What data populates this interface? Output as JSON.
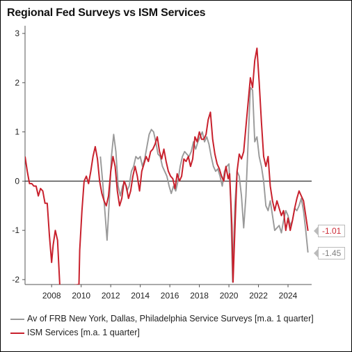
{
  "title": "Regional Fed Surveys vs ISM Services",
  "colors": {
    "frb": "#999999",
    "ism": "#c8202c",
    "zero_line": "#333333"
  },
  "chart_data": {
    "type": "line",
    "title": "Regional Fed Surveys vs ISM Services",
    "xlabel": "",
    "ylabel": "",
    "xlim": [
      2006.2,
      2025.6
    ],
    "ylim": [
      -2.1,
      3.1
    ],
    "x_ticks": [
      "2008",
      "2010",
      "2012",
      "2014",
      "2016",
      "2018",
      "2020",
      "2022",
      "2024"
    ],
    "y_ticks": [
      "-2",
      "-1",
      "0",
      "1",
      "2",
      "3"
    ],
    "grid": false,
    "legend_position": "bottom",
    "series": [
      {
        "name": "Av of FRB New York, Dallas, Philadelphia Service Surveys [m.a. 1 quarter]",
        "color": "#999999",
        "start_year": 2011.3,
        "points": [
          [
            2011.3,
            0.5
          ],
          [
            2011.45,
            0.0
          ],
          [
            2011.6,
            -0.6
          ],
          [
            2011.75,
            -1.2
          ],
          [
            2011.9,
            -0.4
          ],
          [
            2012.05,
            0.5
          ],
          [
            2012.2,
            0.95
          ],
          [
            2012.35,
            0.6
          ],
          [
            2012.5,
            -0.1
          ],
          [
            2012.65,
            -0.3
          ],
          [
            2012.8,
            -0.1
          ],
          [
            2012.95,
            0.0
          ],
          [
            2013.1,
            -0.2
          ],
          [
            2013.25,
            -0.1
          ],
          [
            2013.4,
            0.2
          ],
          [
            2013.55,
            0.3
          ],
          [
            2013.7,
            0.5
          ],
          [
            2013.85,
            0.45
          ],
          [
            2014.0,
            0.5
          ],
          [
            2014.15,
            0.3
          ],
          [
            2014.3,
            0.45
          ],
          [
            2014.45,
            0.7
          ],
          [
            2014.6,
            0.95
          ],
          [
            2014.75,
            1.05
          ],
          [
            2014.9,
            1.0
          ],
          [
            2015.05,
            0.8
          ],
          [
            2015.2,
            0.55
          ],
          [
            2015.35,
            0.5
          ],
          [
            2015.5,
            0.3
          ],
          [
            2015.65,
            0.2
          ],
          [
            2015.8,
            0.1
          ],
          [
            2015.95,
            -0.1
          ],
          [
            2016.1,
            -0.25
          ],
          [
            2016.25,
            -0.1
          ],
          [
            2016.4,
            -0.2
          ],
          [
            2016.55,
            0.0
          ],
          [
            2016.7,
            0.3
          ],
          [
            2016.85,
            0.5
          ],
          [
            2017.0,
            0.6
          ],
          [
            2017.15,
            0.55
          ],
          [
            2017.3,
            0.5
          ],
          [
            2017.45,
            0.6
          ],
          [
            2017.6,
            0.8
          ],
          [
            2017.75,
            0.65
          ],
          [
            2017.9,
            0.8
          ],
          [
            2018.05,
            0.9
          ],
          [
            2018.2,
            1.0
          ],
          [
            2018.35,
            0.8
          ],
          [
            2018.5,
            0.9
          ],
          [
            2018.65,
            0.75
          ],
          [
            2018.8,
            0.5
          ],
          [
            2018.95,
            0.3
          ],
          [
            2019.1,
            0.2
          ],
          [
            2019.25,
            0.25
          ],
          [
            2019.4,
            0.1
          ],
          [
            2019.55,
            -0.1
          ],
          [
            2019.7,
            0.2
          ],
          [
            2019.85,
            0.3
          ],
          [
            2020.0,
            0.35
          ],
          [
            2020.12,
            -0.4
          ],
          [
            2020.25,
            -2.05
          ],
          [
            2020.4,
            -0.5
          ],
          [
            2020.55,
            0.2
          ],
          [
            2020.7,
            0.1
          ],
          [
            2020.85,
            -0.3
          ],
          [
            2021.0,
            -0.95
          ],
          [
            2021.15,
            -0.3
          ],
          [
            2021.3,
            0.8
          ],
          [
            2021.45,
            1.9
          ],
          [
            2021.6,
            1.85
          ],
          [
            2021.75,
            0.8
          ],
          [
            2021.9,
            0.9
          ],
          [
            2022.05,
            0.5
          ],
          [
            2022.2,
            0.3
          ],
          [
            2022.35,
            0.0
          ],
          [
            2022.5,
            -0.5
          ],
          [
            2022.65,
            -0.6
          ],
          [
            2022.8,
            -0.4
          ],
          [
            2022.95,
            -0.7
          ],
          [
            2023.1,
            -1.0
          ],
          [
            2023.25,
            -0.95
          ],
          [
            2023.4,
            -0.9
          ],
          [
            2023.55,
            -1.05
          ],
          [
            2023.7,
            -0.8
          ],
          [
            2023.85,
            -0.6
          ],
          [
            2024.0,
            -0.7
          ],
          [
            2024.15,
            -0.9
          ],
          [
            2024.3,
            -0.8
          ],
          [
            2024.45,
            -0.55
          ],
          [
            2024.6,
            -0.6
          ],
          [
            2024.75,
            -0.5
          ],
          [
            2024.9,
            -0.35
          ],
          [
            2025.05,
            -0.6
          ],
          [
            2025.2,
            -1.0
          ],
          [
            2025.35,
            -1.45
          ]
        ]
      },
      {
        "name": "ISM Services [m.a. 1 quarter]",
        "color": "#c8202c",
        "start_year": 2006.2,
        "points": [
          [
            2006.2,
            0.5
          ],
          [
            2006.35,
            0.2
          ],
          [
            2006.5,
            -0.05
          ],
          [
            2006.65,
            -0.05
          ],
          [
            2006.8,
            -0.1
          ],
          [
            2006.95,
            -0.1
          ],
          [
            2007.1,
            -0.3
          ],
          [
            2007.25,
            -0.15
          ],
          [
            2007.4,
            -0.2
          ],
          [
            2007.55,
            -0.45
          ],
          [
            2007.7,
            -0.45
          ],
          [
            2007.85,
            -1.1
          ],
          [
            2008.0,
            -1.65
          ],
          [
            2008.1,
            -1.3
          ],
          [
            2008.25,
            -1.0
          ],
          [
            2008.4,
            -1.2
          ],
          [
            2008.55,
            -2.1
          ],
          [
            2008.55,
            -2.15
          ],
          [
            2009.85,
            -2.1
          ],
          [
            2009.9,
            -1.4
          ],
          [
            2010.05,
            -0.6
          ],
          [
            2010.2,
            0.0
          ],
          [
            2010.35,
            0.1
          ],
          [
            2010.5,
            -0.05
          ],
          [
            2010.65,
            0.2
          ],
          [
            2010.8,
            0.5
          ],
          [
            2010.95,
            0.7
          ],
          [
            2011.1,
            0.45
          ],
          [
            2011.25,
            0.0
          ],
          [
            2011.4,
            -0.25
          ],
          [
            2011.55,
            -0.4
          ],
          [
            2011.7,
            -0.5
          ],
          [
            2011.85,
            -0.3
          ],
          [
            2012.0,
            0.2
          ],
          [
            2012.15,
            0.5
          ],
          [
            2012.3,
            0.3
          ],
          [
            2012.45,
            -0.2
          ],
          [
            2012.6,
            -0.5
          ],
          [
            2012.75,
            -0.35
          ],
          [
            2012.9,
            0.0
          ],
          [
            2013.05,
            -0.1
          ],
          [
            2013.2,
            -0.35
          ],
          [
            2013.35,
            -0.2
          ],
          [
            2013.5,
            0.1
          ],
          [
            2013.65,
            0.3
          ],
          [
            2013.8,
            0.1
          ],
          [
            2013.95,
            -0.2
          ],
          [
            2014.1,
            0.2
          ],
          [
            2014.25,
            0.35
          ],
          [
            2014.4,
            0.5
          ],
          [
            2014.55,
            0.4
          ],
          [
            2014.7,
            0.6
          ],
          [
            2014.85,
            0.65
          ],
          [
            2015.0,
            0.75
          ],
          [
            2015.15,
            0.9
          ],
          [
            2015.3,
            0.6
          ],
          [
            2015.45,
            0.45
          ],
          [
            2015.6,
            0.65
          ],
          [
            2015.75,
            0.4
          ],
          [
            2015.9,
            0.2
          ],
          [
            2016.05,
            0.1
          ],
          [
            2016.2,
            0.05
          ],
          [
            2016.35,
            -0.15
          ],
          [
            2016.5,
            0.15
          ],
          [
            2016.65,
            0.0
          ],
          [
            2016.8,
            0.1
          ],
          [
            2016.95,
            0.45
          ],
          [
            2017.1,
            0.4
          ],
          [
            2017.25,
            0.5
          ],
          [
            2017.4,
            0.3
          ],
          [
            2017.55,
            0.45
          ],
          [
            2017.7,
            0.9
          ],
          [
            2017.85,
            0.8
          ],
          [
            2018.0,
            1.0
          ],
          [
            2018.15,
            0.85
          ],
          [
            2018.3,
            0.85
          ],
          [
            2018.45,
            0.95
          ],
          [
            2018.6,
            1.25
          ],
          [
            2018.75,
            1.4
          ],
          [
            2018.9,
            0.85
          ],
          [
            2019.05,
            0.55
          ],
          [
            2019.2,
            0.35
          ],
          [
            2019.35,
            0.25
          ],
          [
            2019.5,
            0.1
          ],
          [
            2019.65,
            0.0
          ],
          [
            2019.8,
            0.3
          ],
          [
            2019.95,
            0.05
          ],
          [
            2020.05,
            0.15
          ],
          [
            2020.2,
            -0.9
          ],
          [
            2020.28,
            -2.05
          ],
          [
            2020.4,
            -1.0
          ],
          [
            2020.55,
            0.2
          ],
          [
            2020.7,
            0.55
          ],
          [
            2020.85,
            0.45
          ],
          [
            2021.0,
            0.6
          ],
          [
            2021.15,
            1.1
          ],
          [
            2021.3,
            1.6
          ],
          [
            2021.45,
            2.1
          ],
          [
            2021.6,
            1.9
          ],
          [
            2021.75,
            2.45
          ],
          [
            2021.9,
            2.7
          ],
          [
            2022.05,
            2.0
          ],
          [
            2022.2,
            1.2
          ],
          [
            2022.35,
            0.5
          ],
          [
            2022.5,
            0.3
          ],
          [
            2022.65,
            0.5
          ],
          [
            2022.8,
            -0.1
          ],
          [
            2022.95,
            -0.4
          ],
          [
            2023.1,
            -0.6
          ],
          [
            2023.25,
            -0.4
          ],
          [
            2023.4,
            -0.55
          ],
          [
            2023.55,
            -0.7
          ],
          [
            2023.7,
            -0.6
          ],
          [
            2023.85,
            -1.0
          ],
          [
            2024.0,
            -0.75
          ],
          [
            2024.15,
            -1.0
          ],
          [
            2024.3,
            -0.8
          ],
          [
            2024.45,
            -0.55
          ],
          [
            2024.6,
            -0.35
          ],
          [
            2024.75,
            -0.2
          ],
          [
            2024.9,
            -0.3
          ],
          [
            2025.05,
            -0.4
          ],
          [
            2025.2,
            -0.7
          ],
          [
            2025.35,
            -1.01
          ]
        ]
      }
    ],
    "end_labels": [
      "-1.01",
      "-1.45"
    ]
  }
}
